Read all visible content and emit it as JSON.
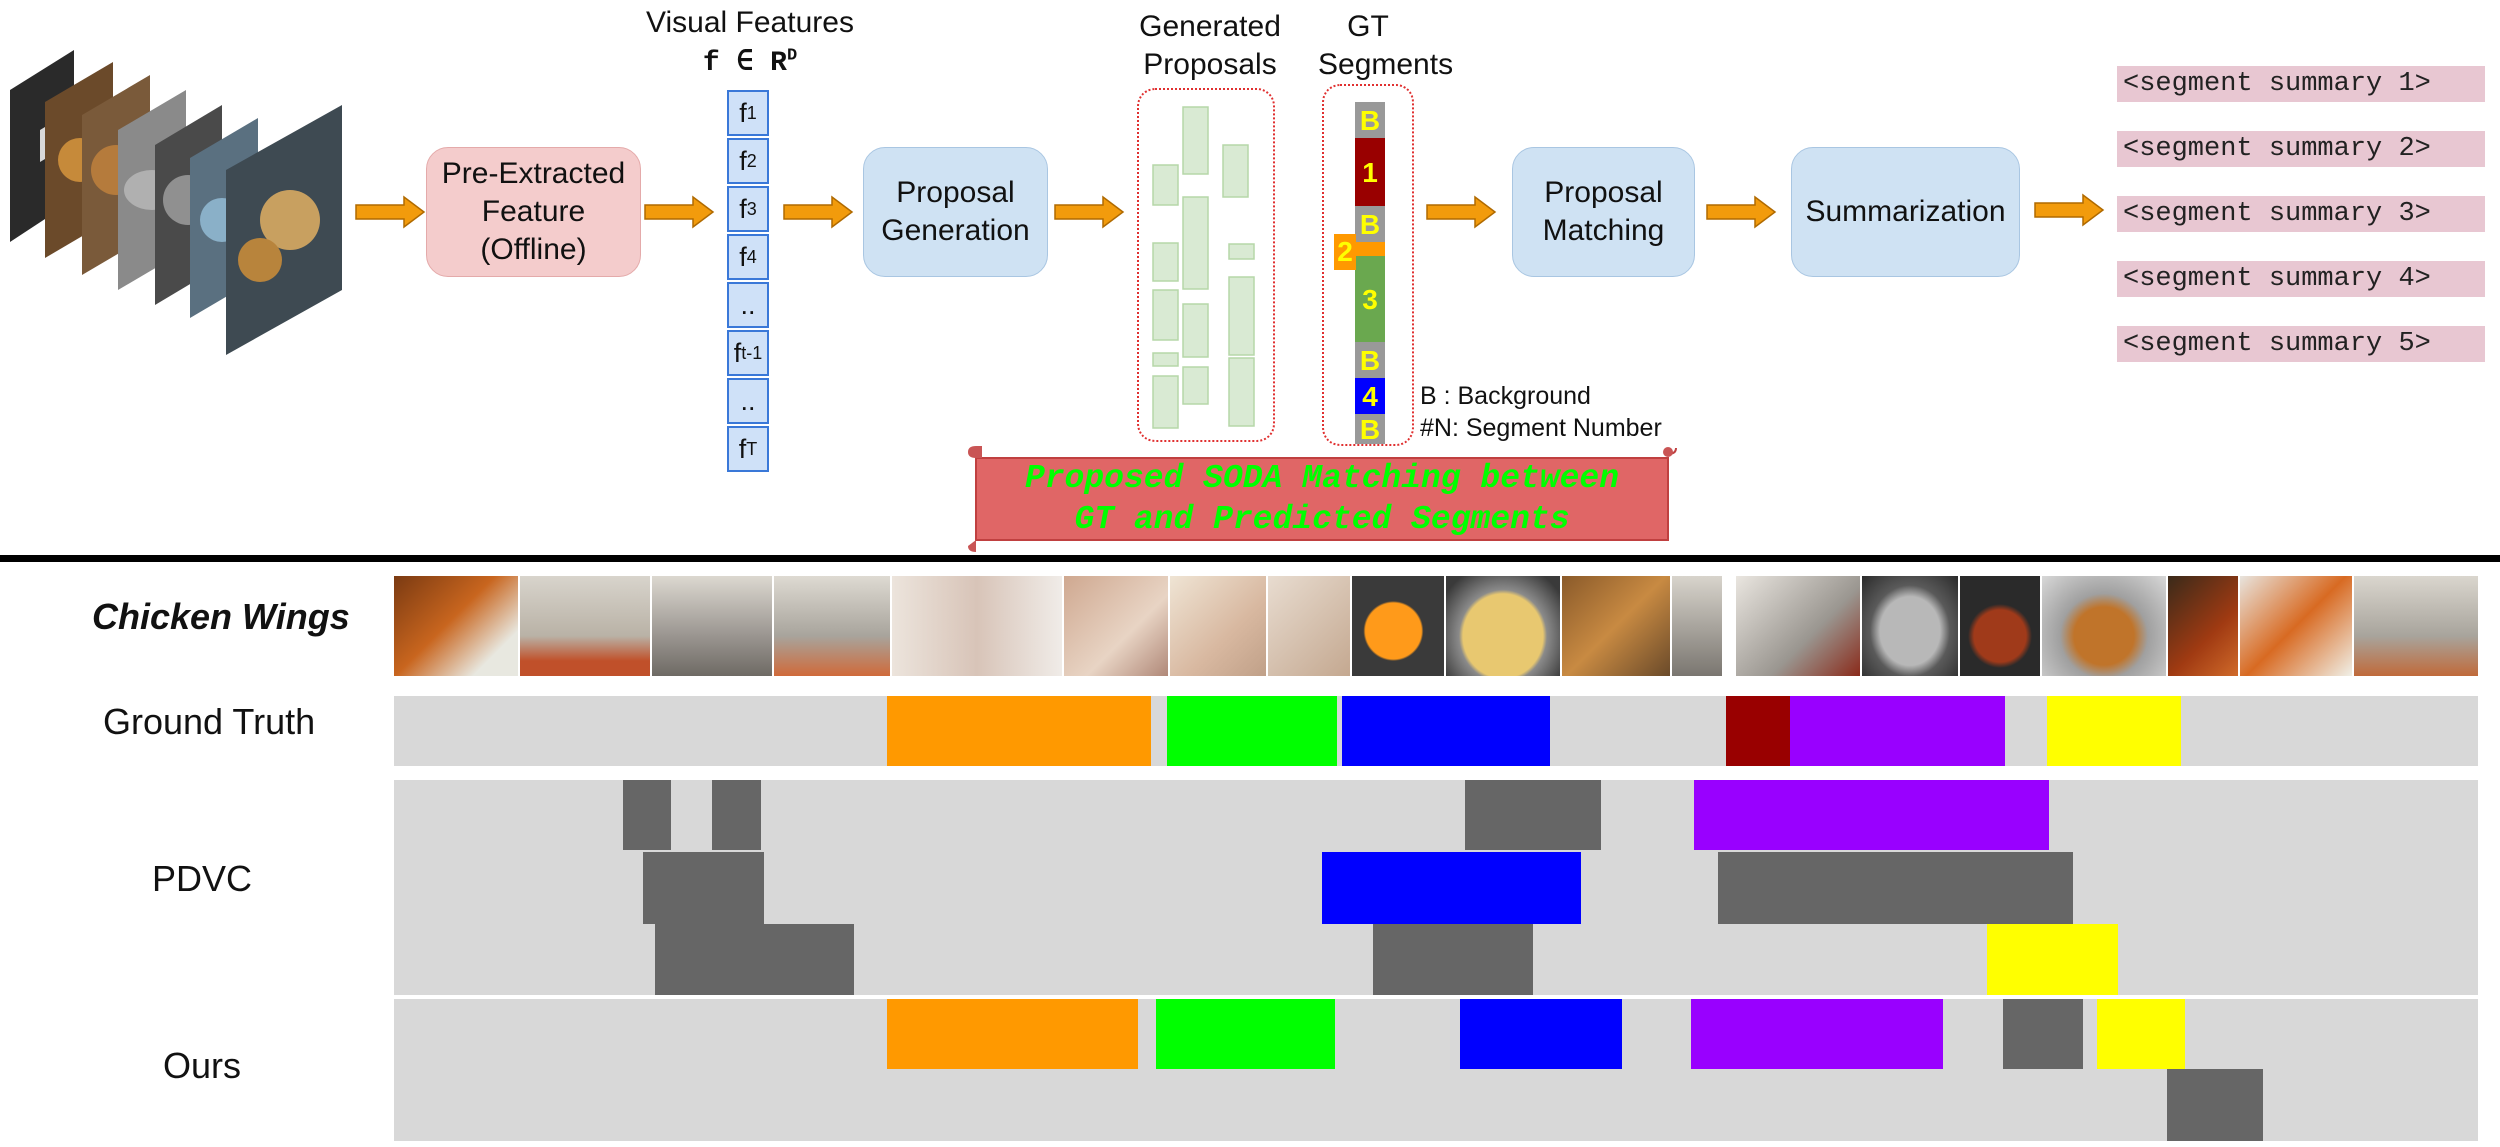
{
  "top": {
    "visual_features_title": "Visual Features",
    "visual_features_formula": "f ∈ R",
    "visual_features_formula_sup": "D",
    "feature_cells": [
      {
        "base": "f",
        "sub": "1"
      },
      {
        "base": "f",
        "sub": "2"
      },
      {
        "base": "f",
        "sub": "3"
      },
      {
        "base": "f",
        "sub": "4"
      },
      {
        "base": "..",
        "sub": ""
      },
      {
        "base": "f",
        "sub": "t-1"
      },
      {
        "base": "..",
        "sub": ""
      },
      {
        "base": "f",
        "sub": "T"
      }
    ],
    "box_pre_extracted": "Pre-Extracted Feature (Offline)",
    "box_proposal_generation": "Proposal Generation",
    "generated_proposals_title": "Generated Proposals",
    "gt_segments_title": "GT Segments",
    "gt_cells": [
      "B",
      "1",
      "B",
      "",
      "3",
      "B",
      "4",
      "B"
    ],
    "gt_side_number": "2",
    "box_proposal_matching": "Proposal Matching",
    "box_summarization": "Summarization",
    "summaries": [
      "<segment summary 1>",
      "<segment summary 2>",
      "<segment summary 3>",
      "<segment summary 4>",
      "<segment summary 5>"
    ],
    "legend_background": "B : Background",
    "legend_segment": "#N: Segment Number",
    "banner_line1": "Proposed SODA Matching between",
    "banner_line2": "GT and Predicted Segments"
  },
  "bottom": {
    "video_title": "Chicken Wings",
    "row_ground_truth": "Ground Truth",
    "row_pdvc": "PDVC",
    "row_ours": "Ours"
  },
  "colors": {
    "orange": "#ff9900",
    "green": "#00ff00",
    "blue": "#0000ff",
    "dark_red": "#990000",
    "purple": "#9900ff",
    "yellow": "#ffff00",
    "gray_segment": "#666666",
    "track": "#d8d8d8",
    "banner": "#e06666",
    "banner_text": "#00ff00"
  }
}
